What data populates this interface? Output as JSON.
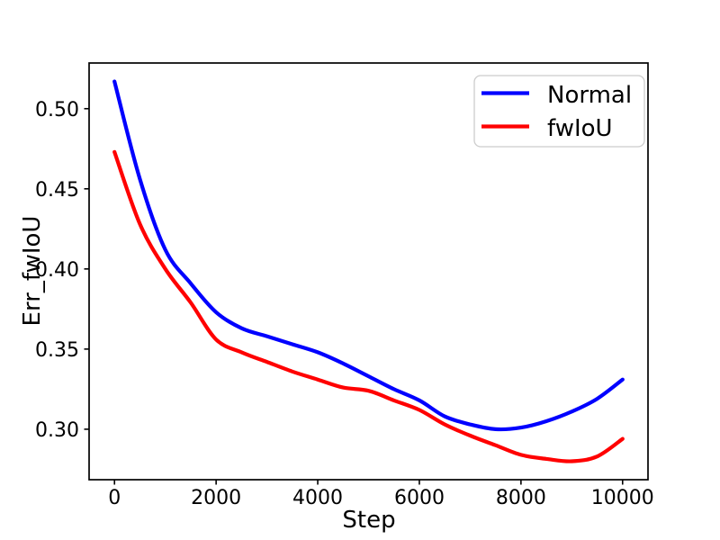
{
  "figure": {
    "background": "#ffffff",
    "frame_color": "#000000",
    "legend_border_color": "#cccccc"
  },
  "chart_data": {
    "type": "line",
    "title": "",
    "xlabel": "Step",
    "ylabel": "Err_fwIoU",
    "xlim": [
      -500,
      10500
    ],
    "ylim": [
      0.2685,
      0.5285
    ],
    "grid": false,
    "legend_position": "upper right",
    "xtick_labels": [
      "0",
      "2000",
      "4000",
      "6000",
      "8000",
      "10000"
    ],
    "xtick_values": [
      0,
      2000,
      4000,
      6000,
      8000,
      10000
    ],
    "ytick_labels": [
      "0.30",
      "0.35",
      "0.40",
      "0.45",
      "0.50"
    ],
    "ytick_values": [
      0.3,
      0.35,
      0.4,
      0.45,
      0.5
    ],
    "x": [
      0,
      500,
      1000,
      1500,
      2000,
      2500,
      3000,
      3500,
      4000,
      4500,
      5000,
      5500,
      6000,
      6500,
      7000,
      7500,
      8000,
      8500,
      9000,
      9500,
      10000
    ],
    "series": [
      {
        "name": "Normal",
        "color": "#0000ff",
        "values": [
          0.517,
          0.456,
          0.412,
          0.391,
          0.373,
          0.363,
          0.358,
          0.353,
          0.348,
          0.341,
          0.333,
          0.325,
          0.318,
          0.308,
          0.303,
          0.3,
          0.301,
          0.305,
          0.311,
          0.319,
          0.331
        ]
      },
      {
        "name": "fwIoU",
        "color": "#ff0000",
        "values": [
          0.473,
          0.428,
          0.4,
          0.379,
          0.356,
          0.348,
          0.342,
          0.336,
          0.331,
          0.326,
          0.324,
          0.318,
          0.312,
          0.303,
          0.296,
          0.29,
          0.284,
          0.2815,
          0.28,
          0.283,
          0.294
        ]
      }
    ]
  }
}
